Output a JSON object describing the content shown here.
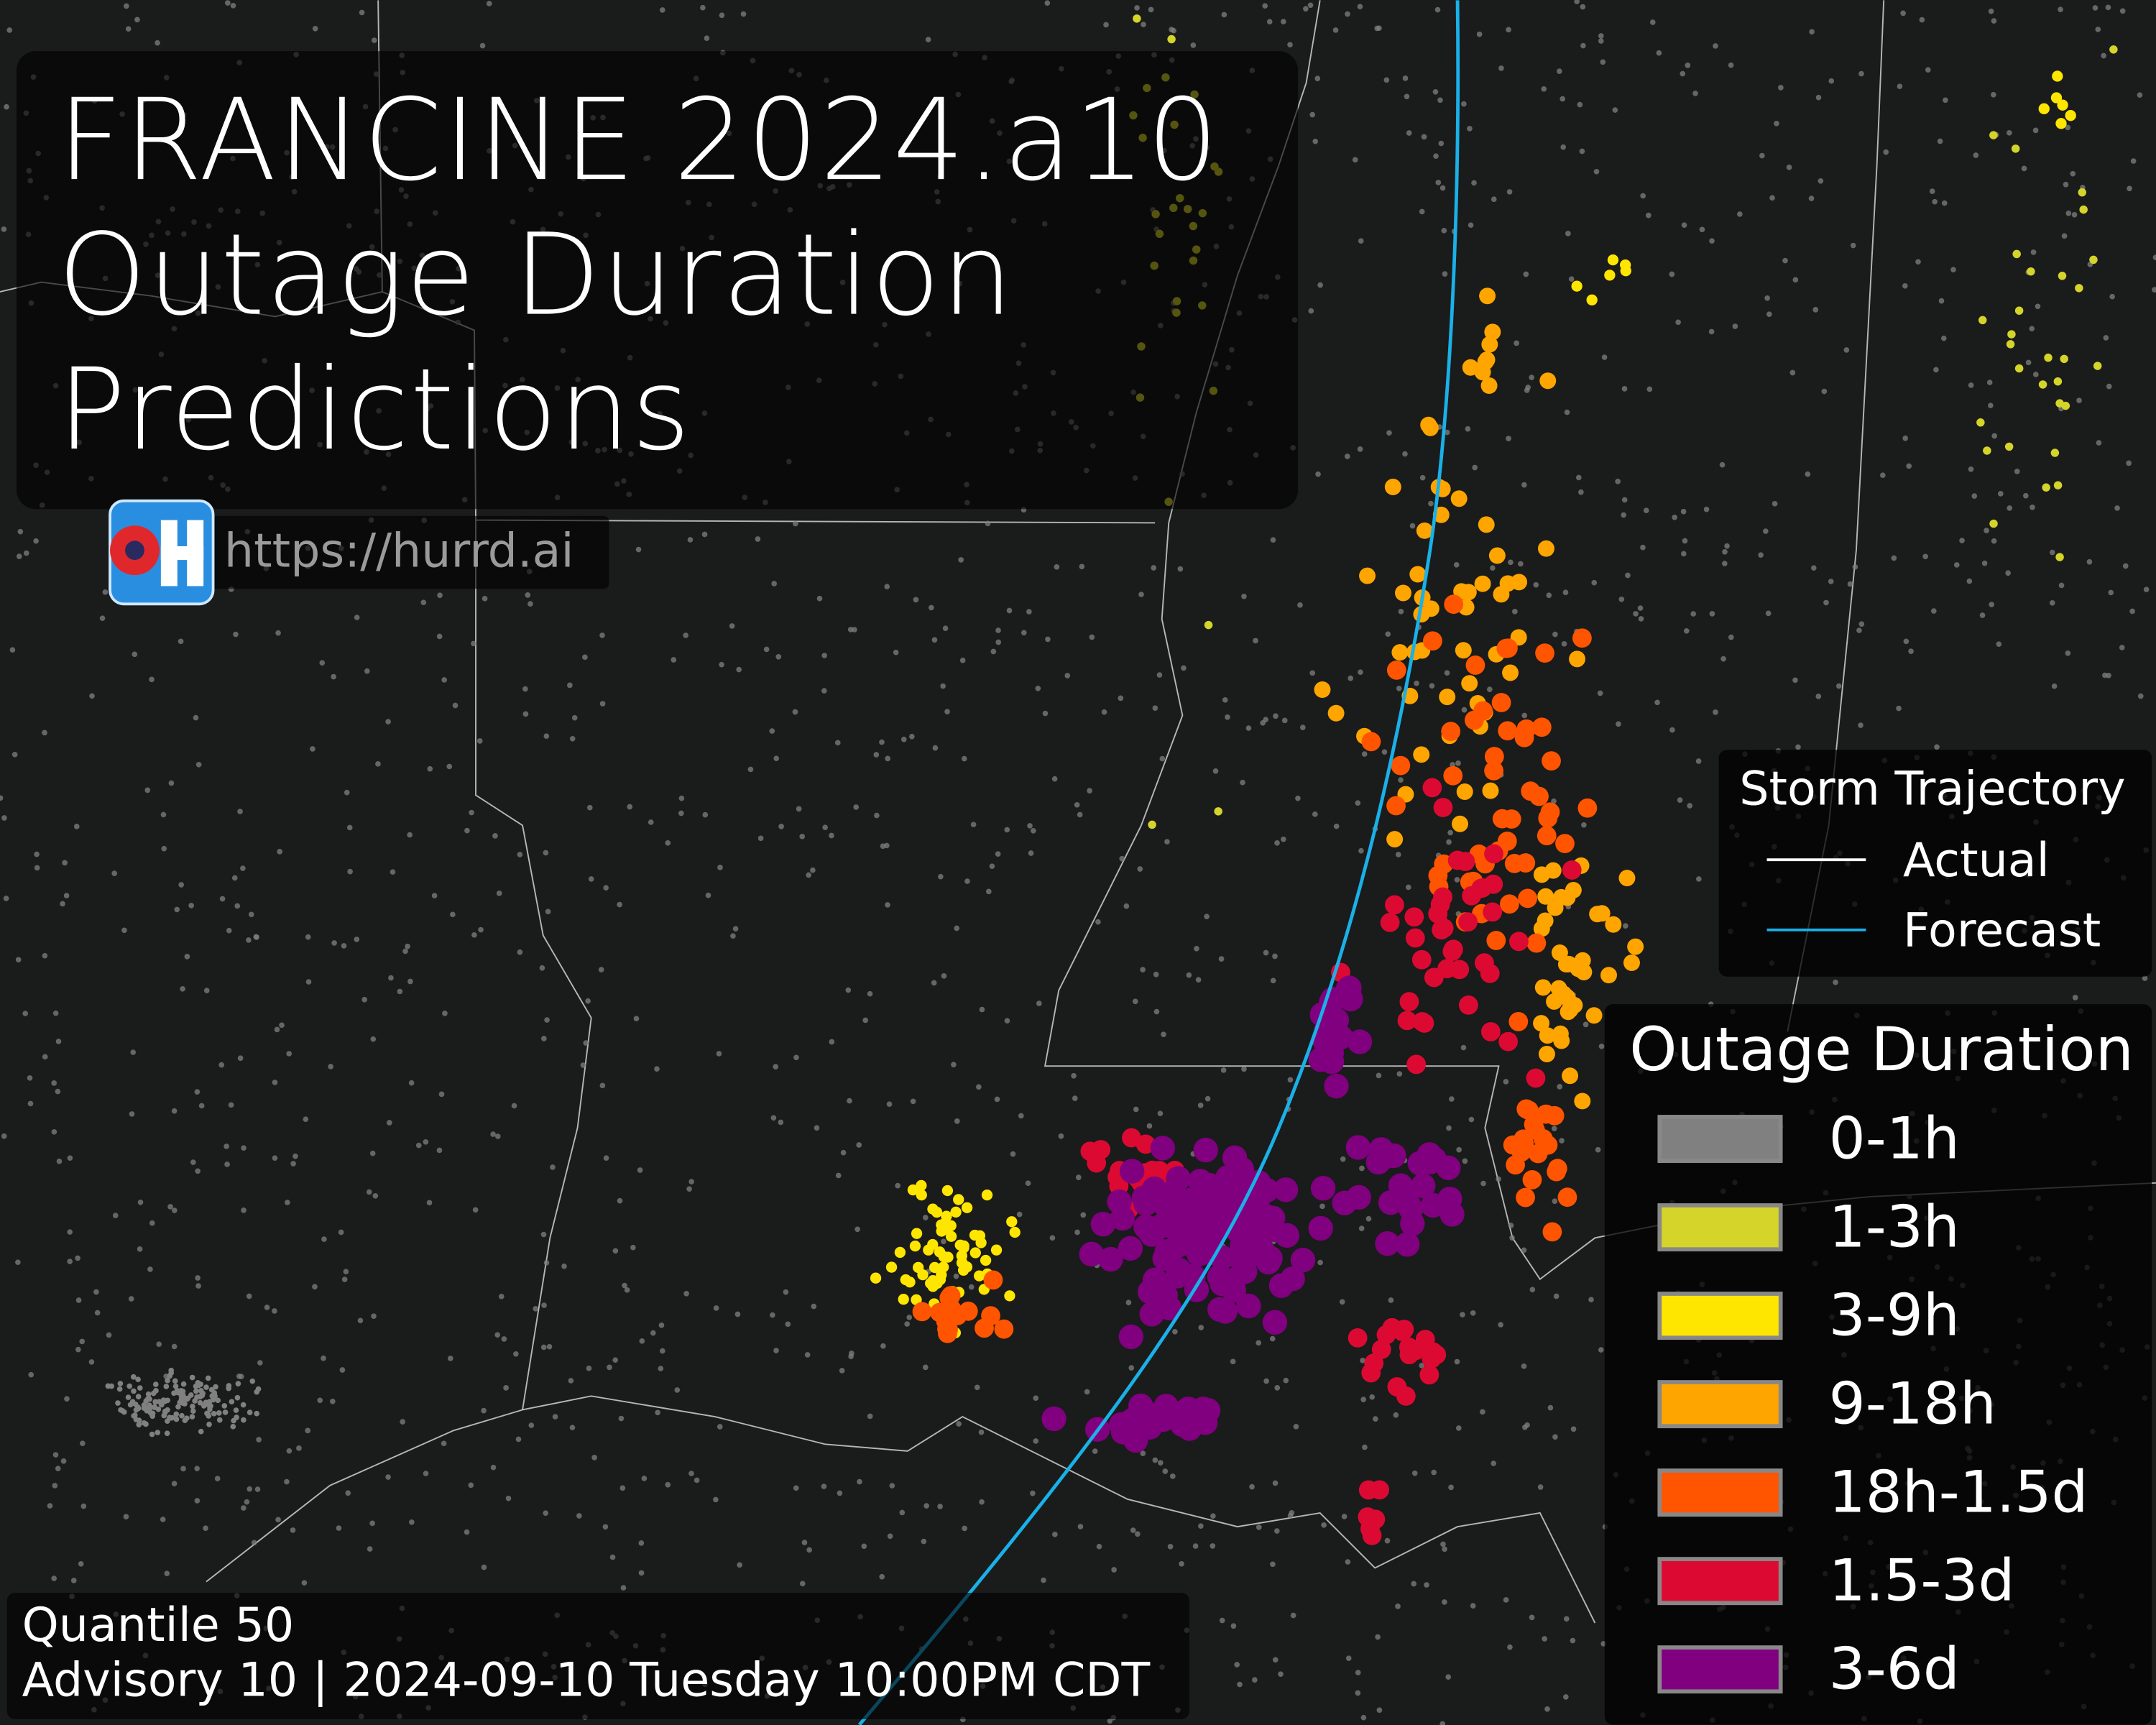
{
  "title": {
    "lines": [
      "FRANCINE 2024.a10",
      "Outage Duration",
      "Predictions"
    ]
  },
  "link": "https://hurrd.ai",
  "trajectory_legend": {
    "title": "Storm Trajectory",
    "entries": [
      {
        "label": "Actual",
        "color": "#ffffff"
      },
      {
        "label": "Forecast",
        "color": "#1ab0e8"
      }
    ]
  },
  "duration_legend": {
    "title": "Outage Duration",
    "entries": [
      {
        "label": "0-1h",
        "color": "#808080"
      },
      {
        "label": "1-3h",
        "color": "#d4d42a"
      },
      {
        "label": "3-9h",
        "color": "#ffe600"
      },
      {
        "label": "9-18h",
        "color": "#ffa500"
      },
      {
        "label": "18h-1.5d",
        "color": "#ff5500"
      },
      {
        "label": "1.5-3d",
        "color": "#dc0a32"
      },
      {
        "label": "3-6d",
        "color": "#800080"
      }
    ]
  },
  "footer": {
    "quantile": "Quantile 50",
    "advisory": "Advisory 10 | 2024-09-10 Tuesday 10:00PM CDT"
  }
}
